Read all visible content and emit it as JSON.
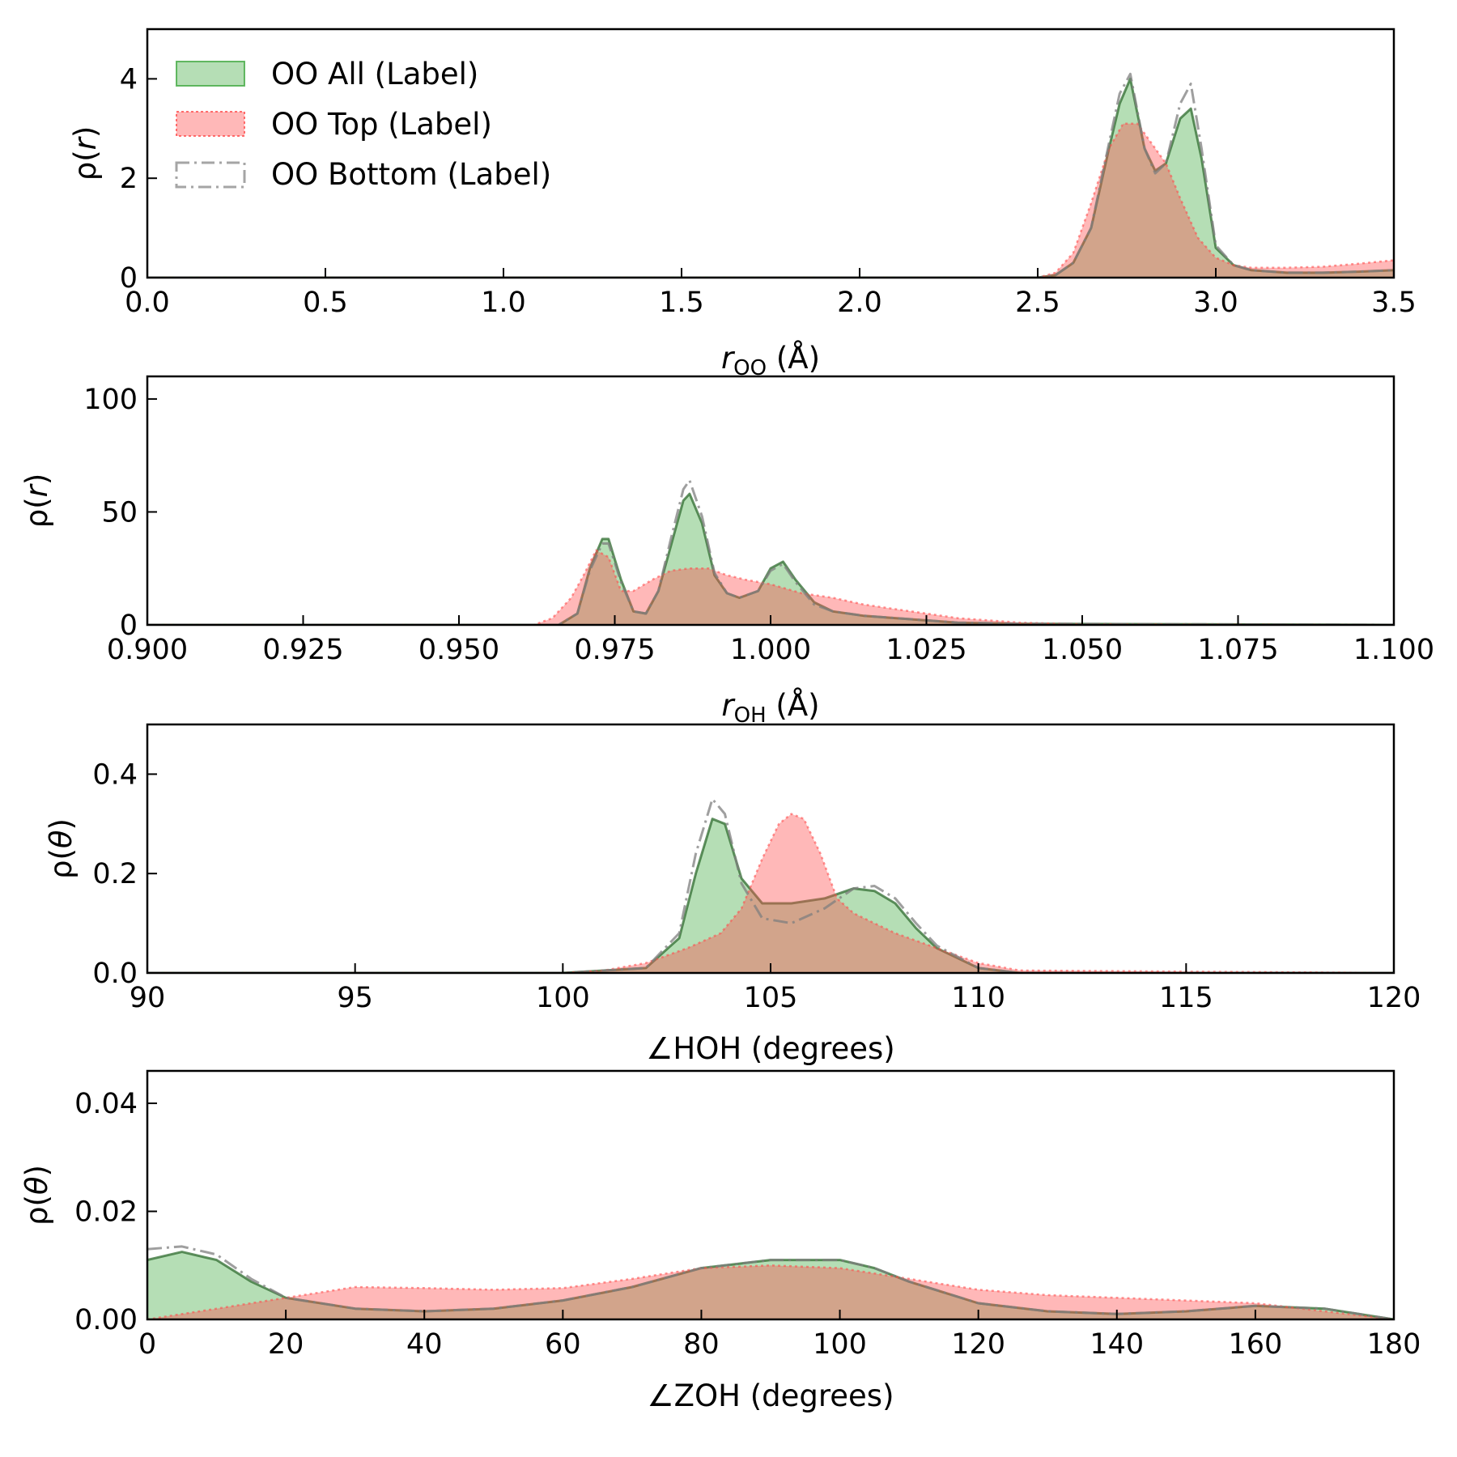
{
  "legend": {
    "placement": "upper-left",
    "entries": [
      {
        "label": "OO All (Label)",
        "color": "#2ca02c",
        "style": "filled"
      },
      {
        "label": "OO Top (Label)",
        "color": "#ff4d4d",
        "style": "filled-dotted"
      },
      {
        "label": "OO Bottom (Label)",
        "color": "#808080",
        "style": "dashdot"
      }
    ]
  },
  "colors": {
    "all": "#2ca02c",
    "top": "#ff4d4d",
    "bottom": "#7f7f7f"
  },
  "chart_data": [
    {
      "type": "area",
      "xlabel_main": "r",
      "xlabel_sub": "OO",
      "xlabel_unit": " (Å)",
      "ylabel_main": "ρ(",
      "ylabel_var": "r",
      "ylabel_end": ")",
      "xlim": [
        0.0,
        3.5
      ],
      "ylim": [
        0,
        5
      ],
      "xticks": [
        "0.0",
        "0.5",
        "1.0",
        "1.5",
        "2.0",
        "2.5",
        "3.0",
        "3.5"
      ],
      "xtick_values": [
        0.0,
        0.5,
        1.0,
        1.5,
        2.0,
        2.5,
        3.0,
        3.5
      ],
      "yticks": [
        "0",
        "2",
        "4"
      ],
      "ytick_values": [
        0,
        2,
        4
      ],
      "series": [
        {
          "key": "all",
          "x": [
            0,
            2.5,
            2.55,
            2.6,
            2.65,
            2.7,
            2.73,
            2.76,
            2.8,
            2.83,
            2.86,
            2.9,
            2.93,
            2.96,
            3.0,
            3.05,
            3.1,
            3.2,
            3.3,
            3.4,
            3.5
          ],
          "y": [
            0,
            0.0,
            0.05,
            0.3,
            1.0,
            2.6,
            3.5,
            4.0,
            2.6,
            2.15,
            2.3,
            3.2,
            3.4,
            2.4,
            0.6,
            0.25,
            0.15,
            0.1,
            0.1,
            0.12,
            0.15
          ]
        },
        {
          "key": "top",
          "x": [
            0,
            2.5,
            2.55,
            2.6,
            2.65,
            2.7,
            2.74,
            2.78,
            2.82,
            2.86,
            2.9,
            2.95,
            3.0,
            3.05,
            3.1,
            3.2,
            3.3,
            3.4,
            3.5
          ],
          "y": [
            0,
            0.0,
            0.1,
            0.5,
            1.5,
            2.6,
            3.1,
            3.1,
            2.7,
            2.3,
            1.6,
            0.8,
            0.4,
            0.25,
            0.2,
            0.2,
            0.22,
            0.28,
            0.35
          ]
        },
        {
          "key": "bottom",
          "x": [
            0,
            2.5,
            2.55,
            2.6,
            2.65,
            2.7,
            2.73,
            2.76,
            2.8,
            2.83,
            2.86,
            2.9,
            2.93,
            2.96,
            3.0,
            3.05,
            3.1,
            3.2,
            3.3,
            3.4,
            3.5
          ],
          "y": [
            0,
            0.0,
            0.05,
            0.3,
            1.0,
            2.7,
            3.7,
            4.1,
            2.6,
            2.1,
            2.3,
            3.5,
            3.9,
            2.6,
            0.65,
            0.25,
            0.15,
            0.1,
            0.1,
            0.12,
            0.15
          ]
        }
      ]
    },
    {
      "type": "area",
      "xlabel_main": "r",
      "xlabel_sub": "OH",
      "xlabel_unit": " (Å)",
      "ylabel_main": "ρ(",
      "ylabel_var": "r",
      "ylabel_end": ")",
      "xlim": [
        0.9,
        1.1
      ],
      "ylim": [
        0,
        110
      ],
      "xticks": [
        "0.900",
        "0.925",
        "0.950",
        "0.975",
        "1.000",
        "1.025",
        "1.050",
        "1.075",
        "1.100"
      ],
      "xtick_values": [
        0.9,
        0.925,
        0.95,
        0.975,
        1.0,
        1.025,
        1.05,
        1.075,
        1.1
      ],
      "yticks": [
        "0",
        "50",
        "100"
      ],
      "ytick_values": [
        0,
        50,
        100
      ],
      "series": [
        {
          "key": "all",
          "x": [
            0.9,
            0.966,
            0.969,
            0.971,
            0.973,
            0.974,
            0.976,
            0.978,
            0.98,
            0.982,
            0.984,
            0.986,
            0.987,
            0.989,
            0.991,
            0.993,
            0.995,
            0.998,
            1.0,
            1.002,
            1.004,
            1.007,
            1.01,
            1.015,
            1.02,
            1.03,
            1.04,
            1.1
          ],
          "y": [
            0,
            0,
            5,
            25,
            38,
            38,
            20,
            6,
            5,
            15,
            35,
            55,
            58,
            45,
            22,
            14,
            12,
            15,
            25,
            28,
            20,
            10,
            6,
            4,
            3,
            1,
            0.5,
            0
          ]
        },
        {
          "key": "top",
          "x": [
            0.9,
            0.962,
            0.965,
            0.968,
            0.97,
            0.972,
            0.974,
            0.976,
            0.978,
            0.981,
            0.984,
            0.987,
            0.99,
            0.993,
            0.996,
            1.0,
            1.005,
            1.01,
            1.015,
            1.02,
            1.025,
            1.03,
            1.04,
            1.05,
            1.1
          ],
          "y": [
            0,
            0,
            3,
            12,
            22,
            33,
            30,
            15,
            15,
            20,
            24,
            25,
            25,
            22,
            20,
            18,
            14,
            12,
            9,
            7,
            5,
            3,
            1,
            0.3,
            0
          ]
        },
        {
          "key": "bottom",
          "x": [
            0.9,
            0.966,
            0.969,
            0.971,
            0.973,
            0.974,
            0.976,
            0.978,
            0.98,
            0.982,
            0.984,
            0.986,
            0.987,
            0.989,
            0.991,
            0.993,
            0.995,
            0.998,
            1.0,
            1.002,
            1.004,
            1.007,
            1.01,
            1.015,
            1.02,
            1.03,
            1.04,
            1.1
          ],
          "y": [
            0,
            0,
            5,
            24,
            36,
            36,
            19,
            6,
            5,
            15,
            38,
            60,
            64,
            48,
            23,
            14,
            12,
            15,
            24,
            27,
            19,
            9,
            6,
            4,
            3,
            1,
            0.5,
            0
          ]
        }
      ]
    },
    {
      "type": "area",
      "xlabel": "∠HOH (degrees)",
      "ylabel_main": "ρ(",
      "ylabel_var": "θ",
      "ylabel_end": ")",
      "xlim": [
        90,
        120
      ],
      "ylim": [
        0,
        0.5
      ],
      "xticks": [
        "90",
        "95",
        "100",
        "105",
        "110",
        "115",
        "120"
      ],
      "xtick_values": [
        90,
        95,
        100,
        105,
        110,
        115,
        120
      ],
      "yticks": [
        "0.0",
        "0.2",
        "0.4"
      ],
      "ytick_values": [
        0,
        0.2,
        0.4
      ],
      "series": [
        {
          "key": "all",
          "x": [
            90,
            100,
            102,
            102.8,
            103.2,
            103.6,
            103.9,
            104.3,
            104.8,
            105.5,
            106.3,
            107.0,
            107.5,
            108,
            108.5,
            109,
            110,
            111,
            120
          ],
          "y": [
            0,
            0,
            0.01,
            0.07,
            0.2,
            0.31,
            0.3,
            0.19,
            0.14,
            0.14,
            0.15,
            0.17,
            0.165,
            0.14,
            0.09,
            0.05,
            0.01,
            0,
            0
          ]
        },
        {
          "key": "top",
          "x": [
            90,
            100,
            101,
            102,
            103,
            103.8,
            104.3,
            104.8,
            105.2,
            105.5,
            105.8,
            106.2,
            106.6,
            107,
            107.5,
            108,
            109,
            110,
            111,
            120
          ],
          "y": [
            0,
            0,
            0.005,
            0.02,
            0.05,
            0.08,
            0.13,
            0.23,
            0.3,
            0.32,
            0.31,
            0.24,
            0.15,
            0.12,
            0.1,
            0.08,
            0.05,
            0.02,
            0.005,
            0
          ]
        },
        {
          "key": "bottom",
          "x": [
            90,
            100,
            102,
            102.8,
            103.2,
            103.6,
            103.9,
            104.3,
            104.8,
            105.5,
            106.3,
            107.0,
            107.5,
            108,
            108.5,
            109,
            110,
            111,
            120
          ],
          "y": [
            0,
            0,
            0.01,
            0.08,
            0.24,
            0.35,
            0.32,
            0.18,
            0.11,
            0.1,
            0.13,
            0.17,
            0.175,
            0.15,
            0.1,
            0.055,
            0.01,
            0,
            0
          ]
        }
      ]
    },
    {
      "type": "area",
      "xlabel": "∠ZOH (degrees)",
      "ylabel_main": "ρ(",
      "ylabel_var": "θ",
      "ylabel_end": ")",
      "xlim": [
        0,
        180
      ],
      "ylim": [
        0,
        0.046
      ],
      "xticks": [
        "0",
        "20",
        "40",
        "60",
        "80",
        "100",
        "120",
        "140",
        "160",
        "180"
      ],
      "xtick_values": [
        0,
        20,
        40,
        60,
        80,
        100,
        120,
        140,
        160,
        180
      ],
      "yticks": [
        "0.00",
        "0.02",
        "0.04"
      ],
      "ytick_values": [
        0,
        0.02,
        0.04
      ],
      "series": [
        {
          "key": "all",
          "x": [
            0,
            5,
            10,
            15,
            20,
            30,
            40,
            50,
            60,
            70,
            80,
            90,
            100,
            105,
            110,
            120,
            130,
            140,
            150,
            160,
            170,
            180
          ],
          "y": [
            0.011,
            0.0125,
            0.011,
            0.007,
            0.004,
            0.002,
            0.0015,
            0.002,
            0.0035,
            0.006,
            0.0095,
            0.011,
            0.011,
            0.0095,
            0.007,
            0.003,
            0.0015,
            0.001,
            0.0015,
            0.0025,
            0.002,
            0
          ]
        },
        {
          "key": "top",
          "x": [
            0,
            10,
            20,
            30,
            40,
            50,
            60,
            70,
            80,
            90,
            100,
            110,
            120,
            130,
            140,
            150,
            160,
            170,
            180
          ],
          "y": [
            0,
            0.002,
            0.004,
            0.006,
            0.0058,
            0.0055,
            0.0058,
            0.0075,
            0.0095,
            0.01,
            0.0095,
            0.0075,
            0.0055,
            0.0045,
            0.004,
            0.0035,
            0.003,
            0.0015,
            0
          ]
        },
        {
          "key": "bottom",
          "x": [
            0,
            5,
            10,
            15,
            20,
            30,
            40,
            50,
            60,
            70,
            80,
            90,
            100,
            105,
            110,
            120,
            130,
            140,
            150,
            160,
            170,
            180
          ],
          "y": [
            0.013,
            0.0135,
            0.012,
            0.0075,
            0.004,
            0.002,
            0.0015,
            0.002,
            0.0035,
            0.006,
            0.0095,
            0.011,
            0.011,
            0.0095,
            0.007,
            0.003,
            0.0015,
            0.001,
            0.0015,
            0.0025,
            0.002,
            0
          ]
        }
      ]
    }
  ]
}
